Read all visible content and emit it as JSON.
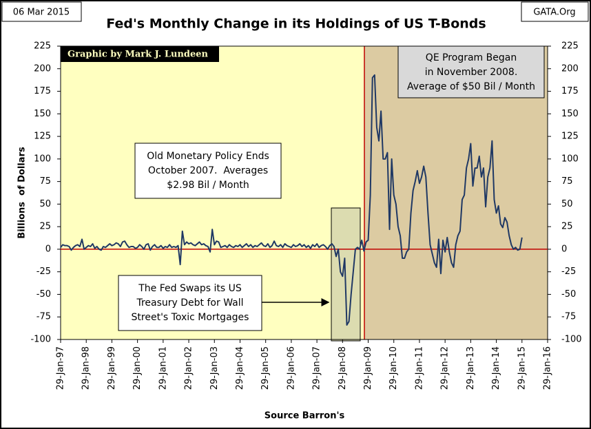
{
  "chart_data": {
    "type": "line",
    "date_stamp": "06 Mar 2015",
    "source_site": "GATA.Org",
    "title": "Fed's Monthly Change in its Holdings of US T-Bonds",
    "credit": "Graphic by Mark J. Lundeen",
    "y_label": "Billions  of Dollars",
    "x_label": "Source Barron's",
    "annotations": [
      {
        "lines": [
          "Old Monetary Policy Ends",
          "October 2007.  Averages",
          "$2.98 Bil / Month"
        ]
      },
      {
        "lines": [
          "The Fed Swaps its US",
          "Treasury Debt for Wall",
          "Street's Toxic Mortgages"
        ]
      },
      {
        "lines": [
          "QE Program Began",
          "in November 2008.",
          "Average of $50 Bil / Month"
        ]
      }
    ],
    "categories": [
      "29-Jan-97",
      null,
      null,
      null,
      null,
      null,
      null,
      null,
      null,
      null,
      null,
      null,
      "29-Jan-98",
      null,
      null,
      null,
      null,
      null,
      null,
      null,
      null,
      null,
      null,
      null,
      "29-Jan-99",
      null,
      null,
      null,
      null,
      null,
      null,
      null,
      null,
      null,
      null,
      null,
      "29-Jan-00",
      null,
      null,
      null,
      null,
      null,
      null,
      null,
      null,
      null,
      null,
      null,
      "29-Jan-01",
      null,
      null,
      null,
      null,
      null,
      null,
      null,
      null,
      null,
      null,
      null,
      "29-Jan-02",
      null,
      null,
      null,
      null,
      null,
      null,
      null,
      null,
      null,
      null,
      null,
      "29-Jan-03",
      null,
      null,
      null,
      null,
      null,
      null,
      null,
      null,
      null,
      null,
      null,
      "29-Jan-04",
      null,
      null,
      null,
      null,
      null,
      null,
      null,
      null,
      null,
      null,
      null,
      "29-Jan-05",
      null,
      null,
      null,
      null,
      null,
      null,
      null,
      null,
      null,
      null,
      null,
      "29-Jan-06",
      null,
      null,
      null,
      null,
      null,
      null,
      null,
      null,
      null,
      null,
      null,
      "29-Jan-07",
      null,
      null,
      null,
      null,
      null,
      null,
      null,
      null,
      null,
      null,
      null,
      "29-Jan-08",
      null,
      null,
      null,
      null,
      null,
      null,
      null,
      null,
      null,
      null,
      null,
      "29-Jan-09",
      null,
      null,
      null,
      null,
      null,
      null,
      null,
      null,
      null,
      null,
      null,
      "29-Jan-10",
      null,
      null,
      null,
      null,
      null,
      null,
      null,
      null,
      null,
      null,
      null,
      "29-Jan-11",
      null,
      null,
      null,
      null,
      null,
      null,
      null,
      null,
      null,
      null,
      null,
      "29-Jan-12",
      null,
      null,
      null,
      null,
      null,
      null,
      null,
      null,
      null,
      null,
      null,
      "29-Jan-13",
      null,
      null,
      null,
      null,
      null,
      null,
      null,
      null,
      null,
      null,
      null,
      "29-Jan-14",
      null,
      null,
      null,
      null,
      null,
      null,
      null,
      null,
      null,
      null,
      null,
      "29-Jan-15",
      null,
      null,
      null,
      null,
      null,
      null,
      null,
      null,
      null,
      null,
      null,
      "29-Jan-16"
    ],
    "values": [
      2,
      5,
      4,
      4,
      3,
      -1,
      2,
      4,
      5,
      3,
      11,
      0,
      2,
      4,
      3,
      6,
      1,
      3,
      0,
      -1,
      3,
      2,
      4,
      6,
      4,
      5,
      7,
      6,
      3,
      8,
      9,
      5,
      2,
      3,
      3,
      1,
      2,
      5,
      3,
      0,
      5,
      6,
      -1,
      3,
      5,
      2,
      2,
      4,
      1,
      3,
      2,
      5,
      2,
      3,
      2,
      4,
      -17,
      20,
      5,
      8,
      6,
      7,
      5,
      4,
      6,
      8,
      5,
      6,
      4,
      3,
      -3,
      22,
      5,
      9,
      8,
      2,
      3,
      4,
      2,
      5,
      3,
      2,
      4,
      3,
      5,
      2,
      4,
      6,
      3,
      5,
      2,
      4,
      3,
      5,
      7,
      4,
      3,
      6,
      2,
      4,
      9,
      4,
      3,
      5,
      2,
      6,
      4,
      3,
      2,
      5,
      3,
      4,
      6,
      3,
      5,
      2,
      4,
      1,
      5,
      3,
      6,
      2,
      4,
      5,
      3,
      0,
      4,
      6,
      3,
      -8,
      0,
      -25,
      -30,
      -10,
      -84,
      -80,
      -50,
      -25,
      0,
      2,
      0,
      10,
      -2,
      8,
      10,
      60,
      190,
      193,
      135,
      120,
      153,
      100,
      100,
      107,
      22,
      100,
      60,
      50,
      25,
      15,
      -10,
      -10,
      -3,
      0,
      40,
      65,
      75,
      87,
      73,
      80,
      92,
      80,
      40,
      5,
      -5,
      -15,
      -20,
      11,
      -27,
      10,
      -3,
      13,
      -3,
      -15,
      -20,
      5,
      15,
      20,
      55,
      60,
      90,
      100,
      117,
      70,
      90,
      90,
      103,
      80,
      90,
      47,
      80,
      90,
      120,
      55,
      40,
      48,
      28,
      24,
      35,
      30,
      15,
      5,
      0,
      2,
      -1,
      0,
      13,
      null,
      null,
      null,
      null,
      null,
      null,
      null,
      null,
      null,
      null,
      null,
      null
    ],
    "color": "#1f3864",
    "ylim": [
      -100,
      225
    ],
    "yticks": [
      -100,
      -75,
      -50,
      -25,
      0,
      25,
      50,
      75,
      100,
      125,
      150,
      175,
      200,
      225
    ],
    "y2lim": [
      -100,
      225
    ],
    "y2ticks": [
      -100,
      -75,
      -50,
      -25,
      0,
      25,
      50,
      75,
      100,
      125,
      150,
      175,
      200,
      225
    ],
    "zero_line_color": "#c00000"
  }
}
